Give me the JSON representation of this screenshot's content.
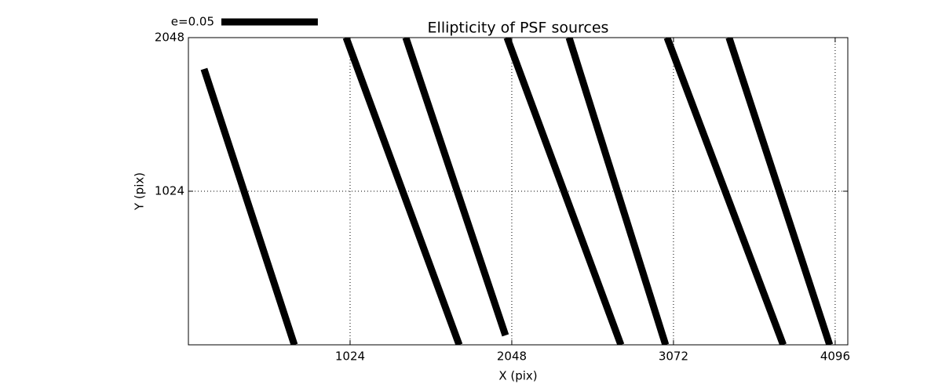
{
  "chart_data": {
    "type": "segments",
    "title": "Ellipticity of PSF sources",
    "x_label": "X (pix)",
    "y_label": "Y (pix)",
    "xlim": [
      0,
      4176
    ],
    "ylim": [
      0,
      2048
    ],
    "xticks": [
      1024,
      2048,
      3072,
      4096
    ],
    "yticks": [
      1024,
      2048
    ],
    "grid": true,
    "color": "#000000",
    "key": {
      "label": "e=0.05",
      "length": 611
    },
    "segments": [
      {
        "x": [
          99,
          671
        ],
        "y": [
          1839,
          0
        ]
      },
      {
        "x": [
          999,
          1715
        ],
        "y": [
          2048,
          0
        ]
      },
      {
        "x": [
          1377,
          2008
        ],
        "y": [
          2048,
          63
        ]
      },
      {
        "x": [
          2018,
          2739
        ],
        "y": [
          2048,
          0
        ]
      },
      {
        "x": [
          2411,
          3022
        ],
        "y": [
          2048,
          0
        ]
      },
      {
        "x": [
          3032,
          3767
        ],
        "y": [
          2048,
          0
        ]
      },
      {
        "x": [
          3424,
          4061
        ],
        "y": [
          2048,
          0
        ]
      }
    ]
  }
}
